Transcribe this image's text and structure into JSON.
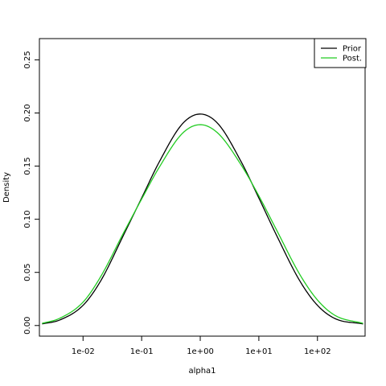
{
  "chart_data": {
    "type": "line",
    "xlabel": "alpha1",
    "ylabel": "Density",
    "x_scale": "log10",
    "xlim": [
      0.0018,
      650
    ],
    "ylim": [
      -0.01,
      0.27
    ],
    "x_ticks": [
      {
        "value": 0.01,
        "label": "1e-02"
      },
      {
        "value": 0.1,
        "label": "1e-01"
      },
      {
        "value": 1,
        "label": "1e+00"
      },
      {
        "value": 10,
        "label": "1e+01"
      },
      {
        "value": 100,
        "label": "1e+02"
      }
    ],
    "y_ticks": [
      {
        "value": 0.0,
        "label": "0.00"
      },
      {
        "value": 0.05,
        "label": "0.05"
      },
      {
        "value": 0.1,
        "label": "0.10"
      },
      {
        "value": 0.15,
        "label": "0.15"
      },
      {
        "value": 0.2,
        "label": "0.20"
      },
      {
        "value": 0.25,
        "label": "0.25"
      }
    ],
    "grid": false,
    "legend": {
      "placement": "top-right"
    },
    "series": [
      {
        "name": "Prior",
        "color": "#000000",
        "x": [
          0.002,
          0.004,
          0.01,
          0.02,
          0.05,
          0.1,
          0.2,
          0.5,
          1,
          2,
          5,
          10,
          20,
          50,
          100,
          200,
          600
        ],
        "y": [
          0.0015,
          0.0052,
          0.019,
          0.042,
          0.086,
          0.12,
          0.154,
          0.19,
          0.199,
          0.19,
          0.154,
          0.12,
          0.085,
          0.042,
          0.019,
          0.0065,
          0.0015
        ]
      },
      {
        "name": "Post.",
        "color": "#22cc22",
        "x": [
          0.002,
          0.004,
          0.01,
          0.02,
          0.05,
          0.1,
          0.2,
          0.5,
          1,
          2,
          5,
          10,
          20,
          50,
          100,
          200,
          600
        ],
        "y": [
          0.002,
          0.0068,
          0.022,
          0.046,
          0.088,
          0.119,
          0.149,
          0.181,
          0.189,
          0.181,
          0.151,
          0.122,
          0.09,
          0.048,
          0.024,
          0.0095,
          0.002
        ]
      }
    ]
  }
}
